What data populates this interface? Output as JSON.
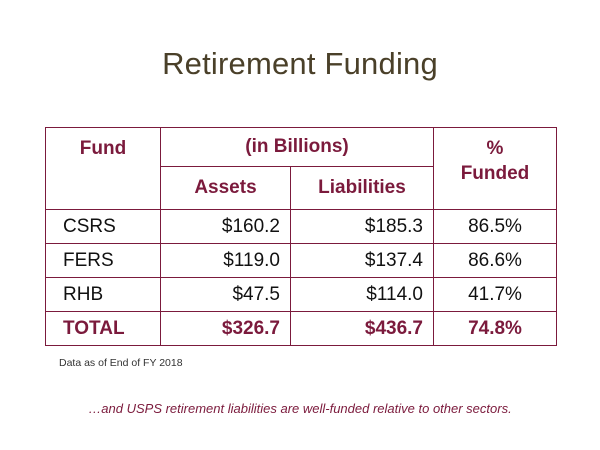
{
  "title": "Retirement Funding",
  "table": {
    "header_fund": "Fund",
    "header_group": "(in Billions)",
    "header_assets": "Assets",
    "header_liabilities": "Liabilities",
    "header_pct_line1": "%",
    "header_pct_line2": "Funded",
    "rows": [
      {
        "fund": "CSRS",
        "assets": "$160.2",
        "liabilities": "$185.3",
        "pct": "86.5%"
      },
      {
        "fund": "FERS",
        "assets": "$119.0",
        "liabilities": "$137.4",
        "pct": "86.6%"
      },
      {
        "fund": "RHB",
        "assets": "$47.5",
        "liabilities": "$114.0",
        "pct": "41.7%"
      },
      {
        "fund": "TOTAL",
        "assets": "$326.7",
        "liabilities": "$436.7",
        "pct": "74.8%"
      }
    ]
  },
  "footnote": "Data as of End of FY 2018",
  "tagline": "…and USPS retirement liabilities are well-funded relative to other sectors.",
  "colors": {
    "title": "#4a4029",
    "accent": "#7b1a3c",
    "text": "#111111"
  }
}
